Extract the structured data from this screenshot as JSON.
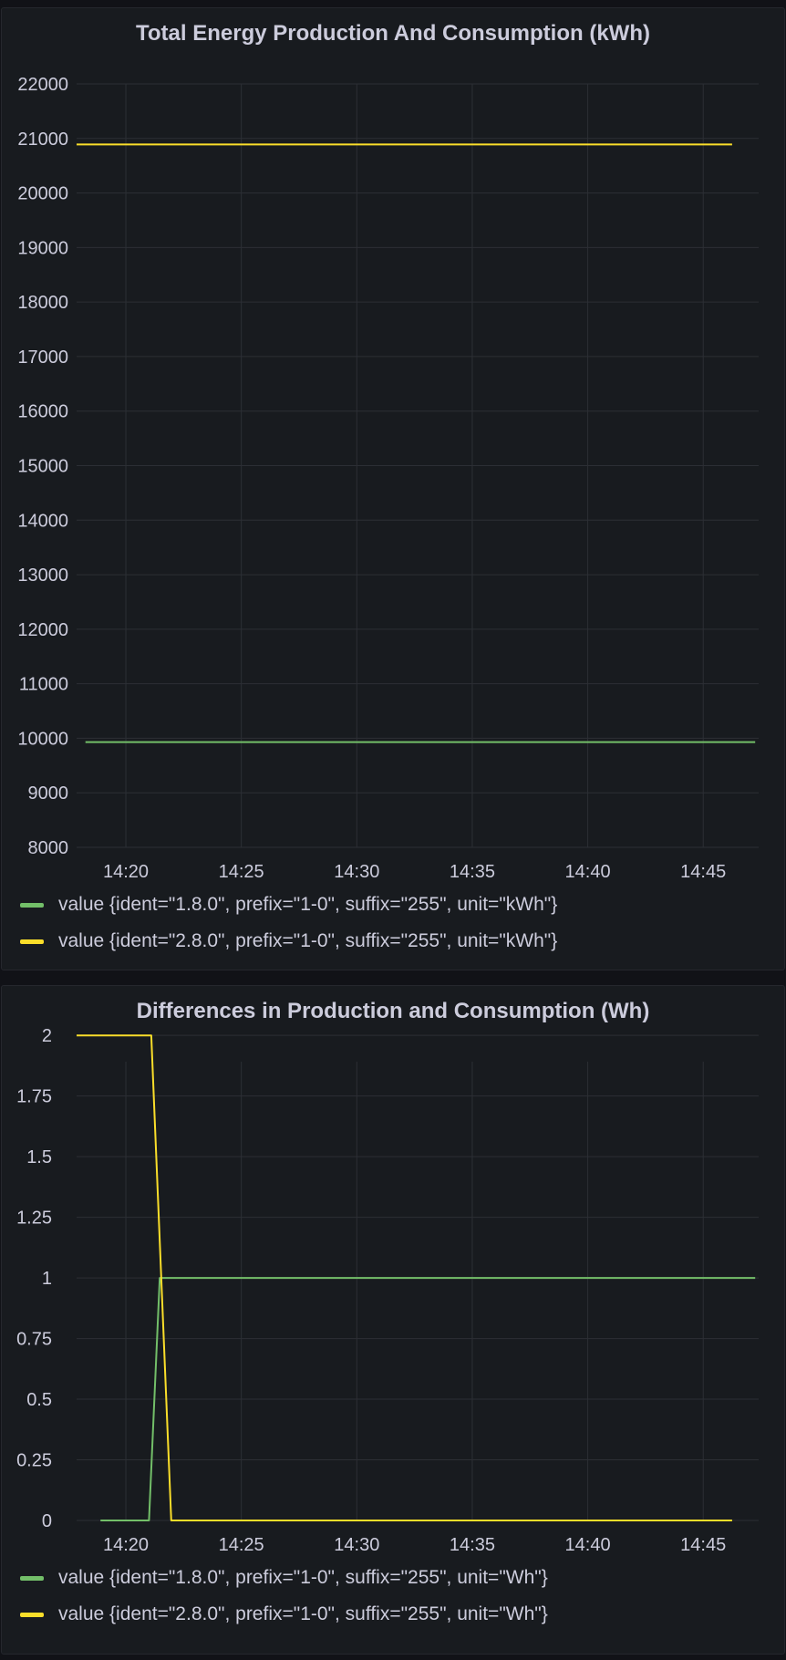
{
  "colors": {
    "green": "#73bf69",
    "yellow": "#fade2a",
    "grid": "#2c2f35",
    "background": "#181b1f"
  },
  "chart_data": [
    {
      "type": "line",
      "title": "Total Energy Production And Consumption (kWh)",
      "xlabel": "",
      "ylabel": "",
      "x_ticks": [
        "14:20",
        "14:25",
        "14:30",
        "14:35",
        "14:40",
        "14:45"
      ],
      "x_range": [
        "14:17:52",
        "14:47:24"
      ],
      "y_ticks": [
        8000,
        9000,
        10000,
        11000,
        12000,
        13000,
        14000,
        15000,
        16000,
        17000,
        18000,
        19000,
        20000,
        21000,
        22000
      ],
      "ylim": [
        8000,
        22000
      ],
      "grid": true,
      "legend_position": "bottom",
      "series": [
        {
          "name": "value {ident=\"1.8.0\", prefix=\"1-0\", suffix=\"255\", unit=\"kWh\"}",
          "color": "#73bf69",
          "x": [
            "14:18:15",
            "14:47:15"
          ],
          "values": [
            9930,
            9930
          ]
        },
        {
          "name": "value {ident=\"2.8.0\", prefix=\"1-0\", suffix=\"255\", unit=\"kWh\"}",
          "color": "#fade2a",
          "x": [
            "14:17:52",
            "14:46:15"
          ],
          "values": [
            20890,
            20890
          ]
        }
      ]
    },
    {
      "type": "line",
      "title": "Differences in Production and Consumption (Wh)",
      "xlabel": "",
      "ylabel": "",
      "x_ticks": [
        "14:20",
        "14:25",
        "14:30",
        "14:35",
        "14:40",
        "14:45"
      ],
      "x_range": [
        "14:17:52",
        "14:47:24"
      ],
      "y_ticks": [
        0,
        0.25,
        0.5,
        0.75,
        1,
        1.25,
        1.5,
        1.75,
        2
      ],
      "y_tick_labels": [
        "0",
        "0.25",
        "0.5",
        "0.75",
        "1",
        "1.25",
        "1.5",
        "1.75",
        "2"
      ],
      "ylim": [
        0,
        2.2
      ],
      "grid": true,
      "legend_position": "bottom",
      "series": [
        {
          "name": "value {ident=\"1.8.0\", prefix=\"1-0\", suffix=\"255\", unit=\"Wh\"}",
          "color": "#73bf69",
          "x": [
            "14:18:54",
            "14:21:00",
            "14:21:28",
            "14:47:15"
          ],
          "values": [
            0,
            0,
            1,
            1
          ]
        },
        {
          "name": "value {ident=\"2.8.0\", prefix=\"1-0\", suffix=\"255\", unit=\"Wh\"}",
          "color": "#fade2a",
          "x": [
            "14:17:52",
            "14:21:06",
            "14:21:58",
            "14:46:15"
          ],
          "values": [
            2,
            2,
            0,
            0
          ]
        }
      ]
    }
  ]
}
